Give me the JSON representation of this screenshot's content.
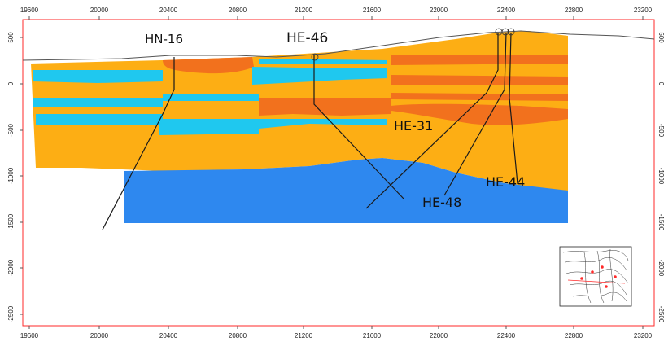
{
  "section": {
    "x_ticks": [
      "19600",
      "20000",
      "20400",
      "20800",
      "21200",
      "21600",
      "22000",
      "22400",
      "22800",
      "23200"
    ],
    "y_ticks": [
      "500",
      "0",
      "-500",
      "-1000",
      "-1500",
      "-2000",
      "-2500"
    ],
    "colors": {
      "frame": "#ff2a2a",
      "layer_orange": "#fdae14",
      "layer_dark": "#f2711d",
      "layer_cyan": "#1fc8ef",
      "basement_blue": "#2e88ef",
      "well_line": "#1a1a1a",
      "topography": "#555555"
    },
    "wells": [
      {
        "id": "hn16",
        "label": "HN-16"
      },
      {
        "id": "he46",
        "label": "HE-46"
      },
      {
        "id": "he31",
        "label": "HE-31"
      },
      {
        "id": "he44",
        "label": "HE-44"
      },
      {
        "id": "he48",
        "label": "HE-48"
      }
    ],
    "inset_map": {
      "title": "location-map"
    }
  }
}
